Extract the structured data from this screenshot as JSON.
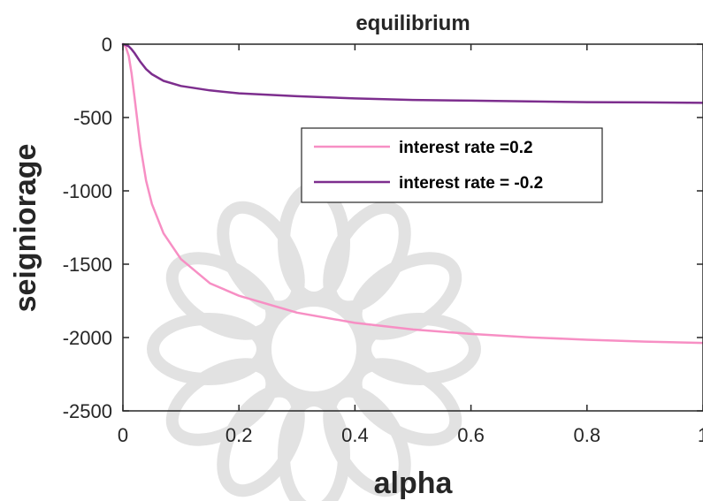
{
  "chart_data": {
    "type": "line",
    "title": "equilibrium",
    "xlabel": "alpha",
    "ylabel": "seigniorage",
    "xlim": [
      0,
      1
    ],
    "ylim": [
      -2500,
      0
    ],
    "xticks": [
      0,
      0.2,
      0.4,
      0.6,
      0.8,
      1
    ],
    "xtick_labels": [
      "0",
      "0.2",
      "0.4",
      "0.6",
      "0.8",
      "1"
    ],
    "yticks": [
      0,
      -500,
      -1000,
      -1500,
      -2000,
      -2500
    ],
    "ytick_labels": [
      "0",
      "-500",
      "-1000",
      "-1500",
      "-2000",
      "-2500"
    ],
    "grid": false,
    "legend_position": "top-right",
    "series": [
      {
        "name": "interest rate =0.2",
        "color": "#f78fc4",
        "x": [
          0,
          0.005,
          0.01,
          0.015,
          0.02,
          0.03,
          0.04,
          0.05,
          0.07,
          0.1,
          0.15,
          0.2,
          0.3,
          0.4,
          0.5,
          0.6,
          0.7,
          0.8,
          0.9,
          1.0
        ],
        "y": [
          0,
          -20,
          -80,
          -200,
          -360,
          -690,
          -930,
          -1090,
          -1290,
          -1465,
          -1630,
          -1715,
          -1830,
          -1900,
          -1945,
          -1975,
          -1998,
          -2015,
          -2028,
          -2037
        ]
      },
      {
        "name": "interest rate = -0.2",
        "color": "#7d2e8e",
        "x": [
          0,
          0.005,
          0.01,
          0.015,
          0.02,
          0.03,
          0.04,
          0.05,
          0.07,
          0.1,
          0.15,
          0.2,
          0.3,
          0.4,
          0.5,
          0.6,
          0.7,
          0.8,
          0.9,
          1.0
        ],
        "y": [
          0,
          -5,
          -15,
          -35,
          -60,
          -120,
          -170,
          -205,
          -250,
          -285,
          -315,
          -335,
          -355,
          -370,
          -380,
          -385,
          -390,
          -395,
          -397,
          -400
        ]
      }
    ]
  }
}
